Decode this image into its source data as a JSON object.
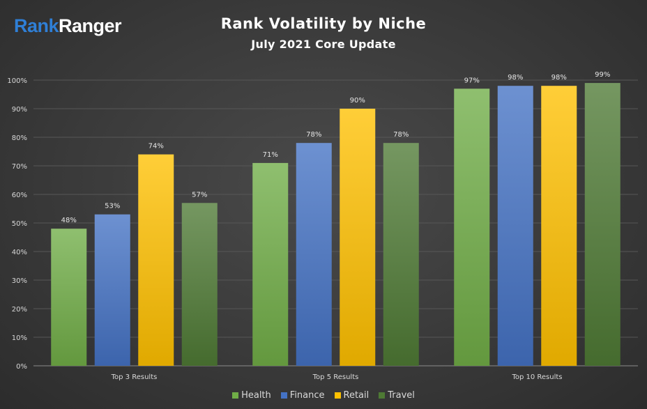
{
  "logo": {
    "part1": "Rank",
    "part2": "Ranger"
  },
  "chart_data": {
    "type": "bar",
    "title": "Rank Volatility by Niche",
    "subtitle": "July 2021 Core Update",
    "categories": [
      "Top 3 Results",
      "Top 5 Results",
      "Top 10 Results"
    ],
    "series": [
      {
        "name": "Health",
        "values": [
          48,
          71,
          97
        ],
        "labels": [
          "48%",
          "71%",
          "97%"
        ],
        "color": "#70ad47"
      },
      {
        "name": "Finance",
        "values": [
          53,
          78,
          98
        ],
        "labels": [
          "53%",
          "78%",
          "98%"
        ],
        "color": "#4472c4"
      },
      {
        "name": "Retail",
        "values": [
          74,
          90,
          98
        ],
        "labels": [
          "74%",
          "90%",
          "98%"
        ],
        "color": "#ffc000"
      },
      {
        "name": "Travel",
        "values": [
          57,
          78,
          99
        ],
        "labels": [
          "57%",
          "78%",
          "99%"
        ],
        "color": "#4e7a34"
      }
    ],
    "ylim": [
      0,
      100
    ],
    "yticks": [
      "0%",
      "10%",
      "20%",
      "30%",
      "40%",
      "50%",
      "60%",
      "70%",
      "80%",
      "90%",
      "100%"
    ],
    "grid": true,
    "legend": "bottom"
  }
}
